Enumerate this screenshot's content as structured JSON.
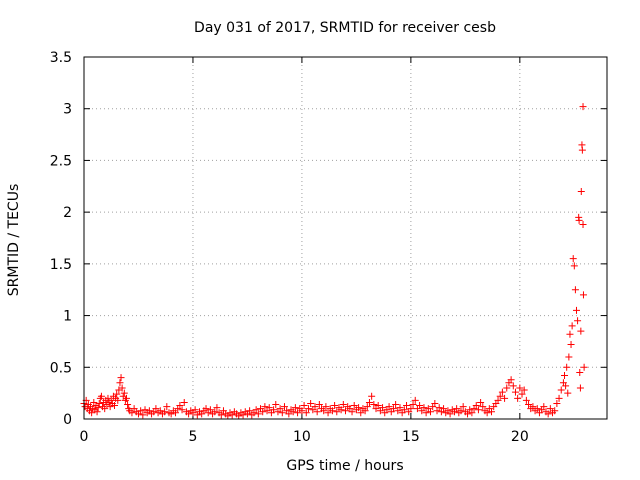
{
  "chart_data": {
    "type": "scatter",
    "title": "Day 031 of 2017, SRMTID for receiver cesb",
    "xlabel": "GPS time / hours",
    "ylabel": "SRMTID / TECUs",
    "xlim": [
      0,
      24
    ],
    "ylim": [
      0,
      3.5
    ],
    "xticks": [
      0,
      5,
      10,
      15,
      20
    ],
    "yticks": [
      0,
      0.5,
      1,
      1.5,
      2,
      2.5,
      3,
      3.5
    ],
    "grid": true,
    "marker": "+",
    "color": "#ff0000",
    "series": [
      {
        "points": [
          [
            0.0,
            0.15
          ],
          [
            0.05,
            0.12
          ],
          [
            0.1,
            0.18
          ],
          [
            0.15,
            0.1
          ],
          [
            0.2,
            0.14
          ],
          [
            0.25,
            0.08
          ],
          [
            0.3,
            0.12
          ],
          [
            0.35,
            0.06
          ],
          [
            0.4,
            0.1
          ],
          [
            0.45,
            0.16
          ],
          [
            0.5,
            0.09
          ],
          [
            0.55,
            0.13
          ],
          [
            0.6,
            0.07
          ],
          [
            0.65,
            0.11
          ],
          [
            0.7,
            0.15
          ],
          [
            0.75,
            0.2
          ],
          [
            0.8,
            0.22
          ],
          [
            0.85,
            0.12
          ],
          [
            0.9,
            0.16
          ],
          [
            0.95,
            0.1
          ],
          [
            1.0,
            0.18
          ],
          [
            1.05,
            0.14
          ],
          [
            1.1,
            0.2
          ],
          [
            1.15,
            0.16
          ],
          [
            1.2,
            0.12
          ],
          [
            1.25,
            0.18
          ],
          [
            1.3,
            0.15
          ],
          [
            1.35,
            0.22
          ],
          [
            1.4,
            0.13
          ],
          [
            1.45,
            0.2
          ],
          [
            1.5,
            0.24
          ],
          [
            1.55,
            0.18
          ],
          [
            1.6,
            0.28
          ],
          [
            1.65,
            0.35
          ],
          [
            1.7,
            0.4
          ],
          [
            1.75,
            0.3
          ],
          [
            1.8,
            0.22
          ],
          [
            1.85,
            0.25
          ],
          [
            1.9,
            0.18
          ],
          [
            1.95,
            0.2
          ],
          [
            2.0,
            0.14
          ],
          [
            2.05,
            0.1
          ],
          [
            2.1,
            0.08
          ],
          [
            2.2,
            0.06
          ],
          [
            2.3,
            0.1
          ],
          [
            2.4,
            0.07
          ],
          [
            2.5,
            0.05
          ],
          [
            2.6,
            0.08
          ],
          [
            2.7,
            0.04
          ],
          [
            2.8,
            0.09
          ],
          [
            2.9,
            0.06
          ],
          [
            3.0,
            0.08
          ],
          [
            3.1,
            0.05
          ],
          [
            3.2,
            0.07
          ],
          [
            3.3,
            0.1
          ],
          [
            3.4,
            0.06
          ],
          [
            3.5,
            0.08
          ],
          [
            3.6,
            0.05
          ],
          [
            3.7,
            0.07
          ],
          [
            3.8,
            0.12
          ],
          [
            3.9,
            0.06
          ],
          [
            4.0,
            0.05
          ],
          [
            4.1,
            0.08
          ],
          [
            4.2,
            0.06
          ],
          [
            4.3,
            0.1
          ],
          [
            4.4,
            0.13
          ],
          [
            4.5,
            0.09
          ],
          [
            4.6,
            0.16
          ],
          [
            4.7,
            0.07
          ],
          [
            4.8,
            0.05
          ],
          [
            4.9,
            0.08
          ],
          [
            5.0,
            0.06
          ],
          [
            5.1,
            0.09
          ],
          [
            5.2,
            0.04
          ],
          [
            5.3,
            0.07
          ],
          [
            5.4,
            0.05
          ],
          [
            5.5,
            0.08
          ],
          [
            5.6,
            0.1
          ],
          [
            5.7,
            0.06
          ],
          [
            5.8,
            0.09
          ],
          [
            5.9,
            0.05
          ],
          [
            6.0,
            0.07
          ],
          [
            6.1,
            0.11
          ],
          [
            6.2,
            0.06
          ],
          [
            6.3,
            0.04
          ],
          [
            6.4,
            0.08
          ],
          [
            6.5,
            0.05
          ],
          [
            6.6,
            0.03
          ],
          [
            6.7,
            0.06
          ],
          [
            6.8,
            0.04
          ],
          [
            6.9,
            0.07
          ],
          [
            7.0,
            0.05
          ],
          [
            7.1,
            0.03
          ],
          [
            7.2,
            0.06
          ],
          [
            7.3,
            0.04
          ],
          [
            7.4,
            0.07
          ],
          [
            7.5,
            0.05
          ],
          [
            7.6,
            0.08
          ],
          [
            7.7,
            0.04
          ],
          [
            7.8,
            0.06
          ],
          [
            7.9,
            0.09
          ],
          [
            8.0,
            0.05
          ],
          [
            8.1,
            0.1
          ],
          [
            8.2,
            0.07
          ],
          [
            8.3,
            0.12
          ],
          [
            8.4,
            0.08
          ],
          [
            8.5,
            0.11
          ],
          [
            8.6,
            0.06
          ],
          [
            8.7,
            0.09
          ],
          [
            8.8,
            0.14
          ],
          [
            8.9,
            0.07
          ],
          [
            9.0,
            0.1
          ],
          [
            9.1,
            0.06
          ],
          [
            9.2,
            0.12
          ],
          [
            9.3,
            0.08
          ],
          [
            9.4,
            0.05
          ],
          [
            9.5,
            0.09
          ],
          [
            9.6,
            0.07
          ],
          [
            9.7,
            0.11
          ],
          [
            9.8,
            0.06
          ],
          [
            9.9,
            0.1
          ],
          [
            10.0,
            0.08
          ],
          [
            10.1,
            0.13
          ],
          [
            10.2,
            0.06
          ],
          [
            10.3,
            0.1
          ],
          [
            10.4,
            0.15
          ],
          [
            10.5,
            0.09
          ],
          [
            10.6,
            0.12
          ],
          [
            10.7,
            0.07
          ],
          [
            10.8,
            0.14
          ],
          [
            10.9,
            0.1
          ],
          [
            11.0,
            0.08
          ],
          [
            11.1,
            0.12
          ],
          [
            11.2,
            0.06
          ],
          [
            11.3,
            0.1
          ],
          [
            11.4,
            0.08
          ],
          [
            11.5,
            0.13
          ],
          [
            11.6,
            0.07
          ],
          [
            11.7,
            0.11
          ],
          [
            11.8,
            0.09
          ],
          [
            11.9,
            0.14
          ],
          [
            12.0,
            0.08
          ],
          [
            12.1,
            0.12
          ],
          [
            12.2,
            0.1
          ],
          [
            12.3,
            0.07
          ],
          [
            12.4,
            0.13
          ],
          [
            12.5,
            0.09
          ],
          [
            12.6,
            0.11
          ],
          [
            12.7,
            0.06
          ],
          [
            12.8,
            0.1
          ],
          [
            12.9,
            0.08
          ],
          [
            13.0,
            0.12
          ],
          [
            13.1,
            0.16
          ],
          [
            13.2,
            0.22
          ],
          [
            13.3,
            0.14
          ],
          [
            13.4,
            0.1
          ],
          [
            13.5,
            0.13
          ],
          [
            13.6,
            0.08
          ],
          [
            13.7,
            0.11
          ],
          [
            13.8,
            0.06
          ],
          [
            13.9,
            0.09
          ],
          [
            14.0,
            0.12
          ],
          [
            14.1,
            0.07
          ],
          [
            14.2,
            0.1
          ],
          [
            14.3,
            0.14
          ],
          [
            14.4,
            0.08
          ],
          [
            14.5,
            0.11
          ],
          [
            14.6,
            0.06
          ],
          [
            14.7,
            0.09
          ],
          [
            14.8,
            0.13
          ],
          [
            14.9,
            0.07
          ],
          [
            15.0,
            0.1
          ],
          [
            15.1,
            0.14
          ],
          [
            15.2,
            0.18
          ],
          [
            15.3,
            0.1
          ],
          [
            15.4,
            0.13
          ],
          [
            15.5,
            0.08
          ],
          [
            15.6,
            0.11
          ],
          [
            15.7,
            0.06
          ],
          [
            15.8,
            0.1
          ],
          [
            15.9,
            0.07
          ],
          [
            16.0,
            0.12
          ],
          [
            16.1,
            0.15
          ],
          [
            16.2,
            0.08
          ],
          [
            16.3,
            0.11
          ],
          [
            16.4,
            0.07
          ],
          [
            16.5,
            0.1
          ],
          [
            16.6,
            0.06
          ],
          [
            16.7,
            0.08
          ],
          [
            16.8,
            0.05
          ],
          [
            16.9,
            0.09
          ],
          [
            17.0,
            0.07
          ],
          [
            17.1,
            0.1
          ],
          [
            17.2,
            0.06
          ],
          [
            17.3,
            0.08
          ],
          [
            17.4,
            0.12
          ],
          [
            17.5,
            0.07
          ],
          [
            17.6,
            0.05
          ],
          [
            17.7,
            0.09
          ],
          [
            17.8,
            0.06
          ],
          [
            17.9,
            0.1
          ],
          [
            18.0,
            0.13
          ],
          [
            18.1,
            0.09
          ],
          [
            18.2,
            0.16
          ],
          [
            18.3,
            0.12
          ],
          [
            18.4,
            0.08
          ],
          [
            18.5,
            0.06
          ],
          [
            18.6,
            0.1
          ],
          [
            18.7,
            0.07
          ],
          [
            18.8,
            0.12
          ],
          [
            18.9,
            0.15
          ],
          [
            19.0,
            0.18
          ],
          [
            19.1,
            0.22
          ],
          [
            19.2,
            0.26
          ],
          [
            19.3,
            0.2
          ],
          [
            19.4,
            0.3
          ],
          [
            19.5,
            0.35
          ],
          [
            19.6,
            0.38
          ],
          [
            19.7,
            0.32
          ],
          [
            19.8,
            0.26
          ],
          [
            19.9,
            0.2
          ],
          [
            20.0,
            0.3
          ],
          [
            20.1,
            0.24
          ],
          [
            20.2,
            0.28
          ],
          [
            20.3,
            0.18
          ],
          [
            20.4,
            0.14
          ],
          [
            20.5,
            0.1
          ],
          [
            20.6,
            0.12
          ],
          [
            20.7,
            0.08
          ],
          [
            20.8,
            0.1
          ],
          [
            20.9,
            0.06
          ],
          [
            21.0,
            0.09
          ],
          [
            21.1,
            0.12
          ],
          [
            21.2,
            0.07
          ],
          [
            21.3,
            0.05
          ],
          [
            21.4,
            0.1
          ],
          [
            21.5,
            0.06
          ],
          [
            21.6,
            0.08
          ],
          [
            21.7,
            0.15
          ],
          [
            21.8,
            0.2
          ],
          [
            21.9,
            0.28
          ],
          [
            22.0,
            0.35
          ],
          [
            22.05,
            0.42
          ],
          [
            22.1,
            0.32
          ],
          [
            22.15,
            0.5
          ],
          [
            22.2,
            0.25
          ],
          [
            22.25,
            0.6
          ],
          [
            22.3,
            0.82
          ],
          [
            22.35,
            0.72
          ],
          [
            22.4,
            0.9
          ],
          [
            22.45,
            1.55
          ],
          [
            22.5,
            1.48
          ],
          [
            22.55,
            1.25
          ],
          [
            22.6,
            1.05
          ],
          [
            22.65,
            0.95
          ],
          [
            22.7,
            1.95
          ],
          [
            22.72,
            1.92
          ],
          [
            22.75,
            0.45
          ],
          [
            22.78,
            0.3
          ],
          [
            22.8,
            0.85
          ],
          [
            22.82,
            2.2
          ],
          [
            22.85,
            2.65
          ],
          [
            22.87,
            2.6
          ],
          [
            22.9,
            3.02
          ],
          [
            22.9,
            1.88
          ],
          [
            22.92,
            1.2
          ],
          [
            22.95,
            0.5
          ]
        ]
      }
    ]
  }
}
